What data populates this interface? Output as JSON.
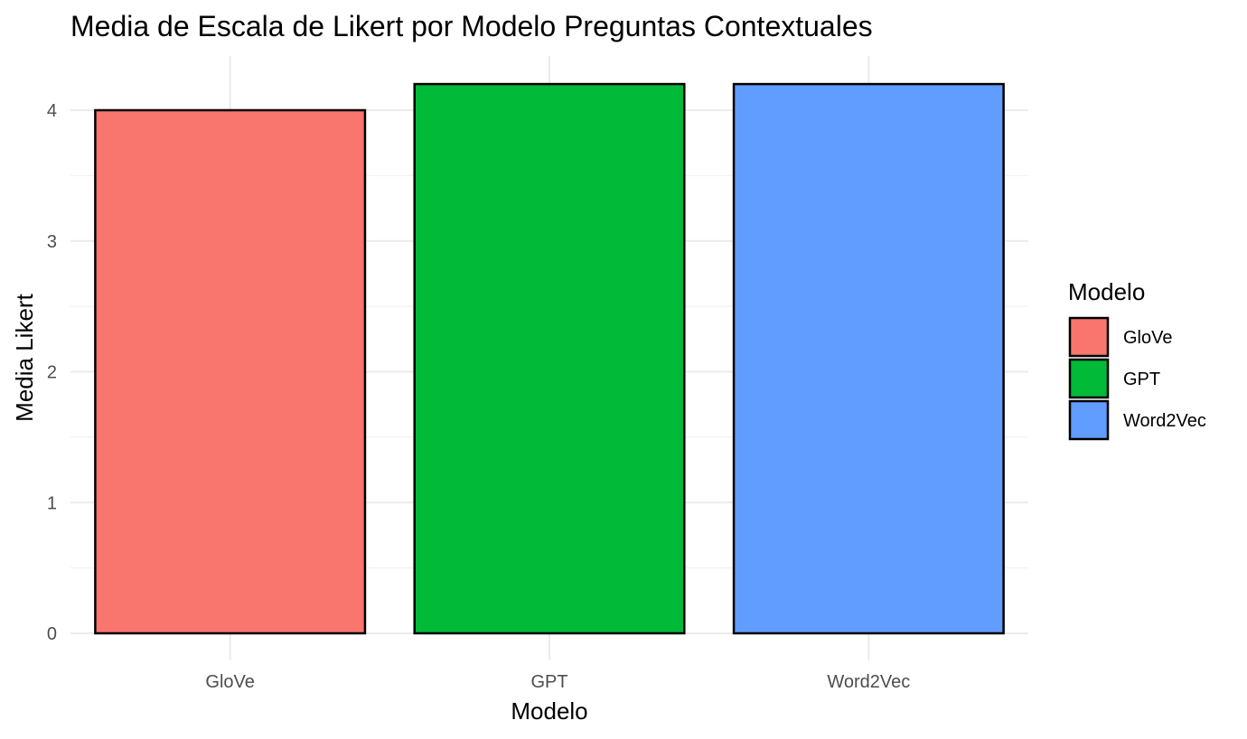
{
  "chart_data": {
    "type": "bar",
    "title": "Media de Escala de Likert por Modelo Preguntas Contextuales",
    "xlabel": "Modelo",
    "ylabel": "Media Likert",
    "categories": [
      "GloVe",
      "GPT",
      "Word2Vec"
    ],
    "values": [
      4.0,
      4.2,
      4.2
    ],
    "colors": [
      "#F8766D",
      "#00BA38",
      "#619CFF"
    ],
    "bar_outline_color": "#000000",
    "ylim": [
      0,
      4.2
    ],
    "y_ticks": [
      0,
      1,
      2,
      3,
      4
    ],
    "y_tick_labels": [
      "0",
      "1",
      "2",
      "3",
      "4"
    ],
    "grid": true,
    "legend": {
      "title": "Modelo",
      "placement": "right",
      "entries": [
        "GloVe",
        "GPT",
        "Word2Vec"
      ]
    }
  }
}
